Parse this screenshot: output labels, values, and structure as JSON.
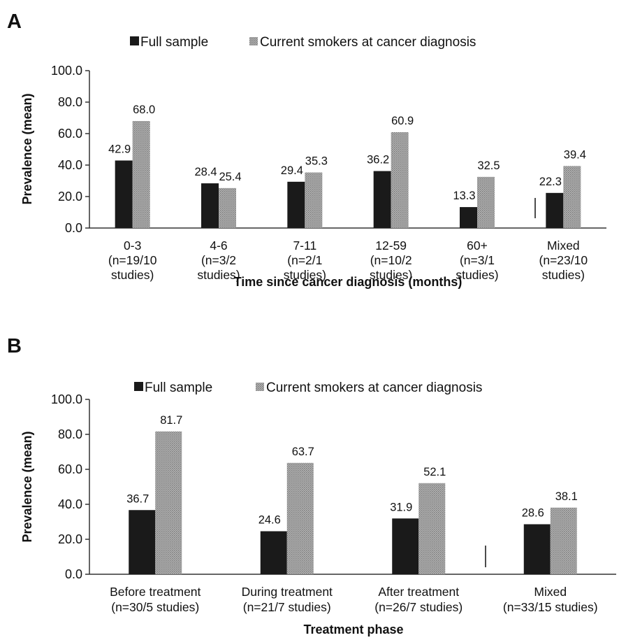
{
  "chart_data": [
    {
      "panel": "A",
      "type": "bar",
      "categories": [
        [
          "0-3",
          "(n=19/10",
          "studies)"
        ],
        [
          "4-6",
          "(n=3/2",
          "studies)"
        ],
        [
          "7-11",
          "(n=2/1",
          "studies)"
        ],
        [
          "12-59",
          "(n=10/2",
          "studies)"
        ],
        [
          "60+",
          "(n=3/1",
          "studies)"
        ],
        [
          "Mixed",
          "(n=23/10",
          "studies)"
        ]
      ],
      "series": [
        {
          "name": "Full sample",
          "color": "#1a1a1a",
          "values": [
            42.9,
            28.4,
            29.4,
            36.2,
            13.3,
            22.3
          ],
          "labels": [
            "42.9",
            "28.4",
            "29.4",
            "36.2",
            "13.3",
            "22.3"
          ]
        },
        {
          "name": "Current smokers at cancer diagnosis",
          "color": "#a6a6a6",
          "pattern": "dotted-gray",
          "values": [
            68.0,
            25.4,
            35.3,
            60.9,
            32.5,
            39.4
          ],
          "labels": [
            "68.0",
            "25.4",
            "35.3",
            "60.9",
            "32.5",
            "39.4"
          ]
        }
      ],
      "ylabel": "Prevalence (mean)",
      "xlabel": "Time since cancer diagnosis (months)",
      "ylim": [
        0,
        100
      ],
      "yticks": [
        "0.0",
        "20.0",
        "40.0",
        "60.0",
        "80.0",
        "100.0"
      ],
      "legend": "top",
      "grid": false
    },
    {
      "panel": "B",
      "type": "bar",
      "categories": [
        [
          "Before treatment",
          "(n=30/5 studies)"
        ],
        [
          "During treatment",
          "(n=21/7 studies)"
        ],
        [
          "After treatment",
          "(n=26/7 studies)"
        ],
        [
          "Mixed",
          "(n=33/15 studies)"
        ]
      ],
      "series": [
        {
          "name": "Full sample",
          "color": "#1a1a1a",
          "values": [
            36.7,
            24.6,
            31.9,
            28.6
          ],
          "labels": [
            "36.7",
            "24.6",
            "31.9",
            "28.6"
          ]
        },
        {
          "name": "Current smokers at cancer diagnosis",
          "color": "#a6a6a6",
          "pattern": "dotted-gray",
          "values": [
            81.7,
            63.7,
            52.1,
            38.1
          ],
          "labels": [
            "81.7",
            "63.7",
            "52.1",
            "38.1"
          ]
        }
      ],
      "ylabel": "Prevalence (mean)",
      "xlabel": "Treatment phase",
      "ylim": [
        0,
        100
      ],
      "yticks": [
        "0.0",
        "20.0",
        "40.0",
        "60.0",
        "80.0",
        "100.0"
      ],
      "legend": "top",
      "grid": false
    }
  ]
}
